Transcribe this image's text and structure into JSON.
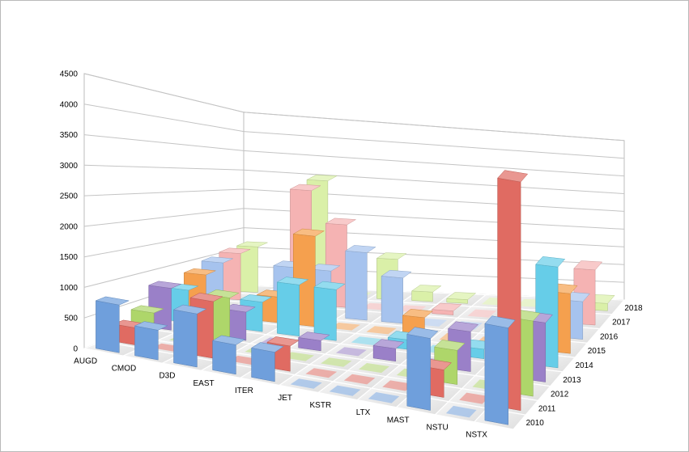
{
  "chart_data": {
    "type": "bar",
    "variant": "3d-column",
    "title": "",
    "xlabel": "",
    "ylabel": "",
    "ylim": [
      0,
      4500
    ],
    "yticks": [
      "0",
      "500",
      "1000",
      "1500",
      "2000",
      "2500",
      "3000",
      "3500",
      "4000",
      "4500"
    ],
    "categories": [
      "AUGD",
      "CMOD",
      "D3D",
      "EAST",
      "ITER",
      "JET",
      "KSTR",
      "LTX",
      "MAST",
      "NSTU",
      "NSTX"
    ],
    "series": [
      {
        "name": "2010",
        "color": "#6f9fdc",
        "values": [
          800,
          500,
          900,
          500,
          500,
          40,
          40,
          40,
          1250,
          40,
          1700
        ]
      },
      {
        "name": "2011",
        "color": "#e06b62",
        "values": [
          300,
          0,
          1000,
          0,
          450,
          0,
          0,
          0,
          500,
          0,
          4200
        ]
      },
      {
        "name": "2012",
        "color": "#aed66a",
        "values": [
          450,
          0,
          950,
          0,
          0,
          0,
          0,
          0,
          650,
          0,
          1450
        ]
      },
      {
        "name": "2013",
        "color": "#9a80c8",
        "values": [
          800,
          0,
          550,
          0,
          200,
          0,
          250,
          0,
          800,
          0,
          1200
        ]
      },
      {
        "name": "2014",
        "color": "#66cde8",
        "values": [
          650,
          0,
          600,
          1050,
          1050,
          50,
          200,
          0,
          200,
          500,
          2150
        ]
      },
      {
        "name": "2015",
        "color": "#f5a04e",
        "values": [
          850,
          0,
          550,
          1950,
          0,
          50,
          450,
          0,
          0,
          0,
          1350
        ]
      },
      {
        "name": "2016",
        "color": "#a6c3ee",
        "values": [
          1000,
          0,
          1050,
          1050,
          1550,
          1050,
          0,
          0,
          0,
          0,
          900
        ]
      },
      {
        "name": "2017",
        "color": "#f5b3b3",
        "values": [
          1100,
          0,
          2750,
          2000,
          0,
          0,
          100,
          0,
          0,
          0,
          1400
        ]
      },
      {
        "name": "2018",
        "color": "#daf0a8",
        "values": [
          1150,
          0,
          2950,
          0,
          1050,
          250,
          100,
          0,
          0,
          0,
          200
        ]
      }
    ],
    "grid": true,
    "legend": "none",
    "floor_color": "#ececec"
  }
}
